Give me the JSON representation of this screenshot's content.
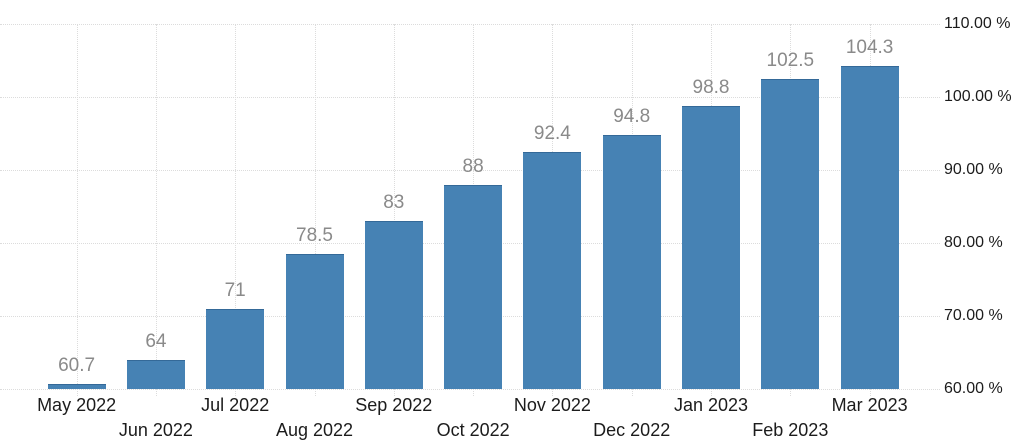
{
  "chart": {
    "background": "#ffffff",
    "unit": "%"
  },
  "chart_data": {
    "type": "bar",
    "title": "",
    "xlabel": "",
    "ylabel": "",
    "categories": [
      "May 2022",
      "Jun 2022",
      "Jul 2022",
      "Aug 2022",
      "Sep 2022",
      "Oct 2022",
      "Nov 2022",
      "Dec 2022",
      "Jan 2023",
      "Feb 2023",
      "Mar 2023"
    ],
    "values": [
      60.7,
      64,
      71,
      78.5,
      83,
      88,
      92.4,
      94.8,
      98.8,
      102.5,
      104.3
    ],
    "value_labels": [
      "60.7",
      "64",
      "71",
      "78.5",
      "83",
      "88",
      "92.4",
      "94.8",
      "98.8",
      "102.5",
      "104.3"
    ],
    "ylim": [
      60,
      110
    ],
    "y_tick_step": 10,
    "y_tick_labels": [
      "60.00 %",
      "70.00 %",
      "80.00 %",
      "90.00 %",
      "100.00 %",
      "110.00 %"
    ],
    "grid": "dotted",
    "legend": "none",
    "x_label_rows": "staggered",
    "colors": {
      "bar": "#4682b4",
      "value_label": "#8a8a8a",
      "axis_text": "#1c1c1c",
      "gridline": "#dcdcdc"
    }
  }
}
